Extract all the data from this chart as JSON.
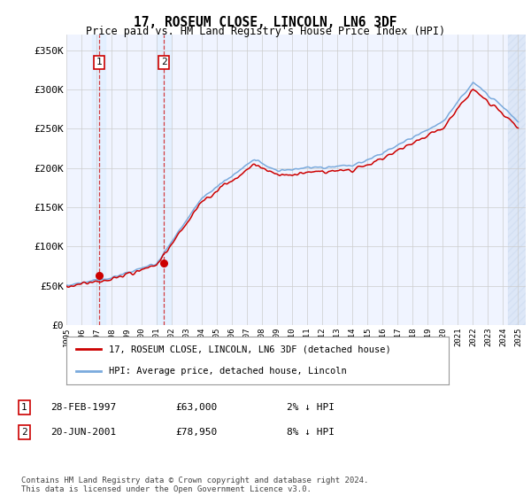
{
  "title": "17, ROSEUM CLOSE, LINCOLN, LN6 3DF",
  "subtitle": "Price paid vs. HM Land Registry's House Price Index (HPI)",
  "ylabel_ticks": [
    "£0",
    "£50K",
    "£100K",
    "£150K",
    "£200K",
    "£250K",
    "£300K",
    "£350K"
  ],
  "ytick_values": [
    0,
    50000,
    100000,
    150000,
    200000,
    250000,
    300000,
    350000
  ],
  "ylim": [
    0,
    370000
  ],
  "xlim_start": 1995.0,
  "xlim_end": 2025.5,
  "sale1_date": 1997.16,
  "sale1_price": 63000,
  "sale1_label": "1",
  "sale1_date_str": "28-FEB-1997",
  "sale1_price_str": "£63,000",
  "sale1_hpi_str": "2% ↓ HPI",
  "sale2_date": 2001.47,
  "sale2_price": 78950,
  "sale2_label": "2",
  "sale2_date_str": "20-JUN-2001",
  "sale2_price_str": "£78,950",
  "sale2_hpi_str": "8% ↓ HPI",
  "hpi_line_color": "#7aaadd",
  "price_line_color": "#cc0000",
  "sale_marker_color": "#cc0000",
  "shade_color": "#ddeeff",
  "grid_color": "#cccccc",
  "legend_label1": "17, ROSEUM CLOSE, LINCOLN, LN6 3DF (detached house)",
  "legend_label2": "HPI: Average price, detached house, Lincoln",
  "footnote": "Contains HM Land Registry data © Crown copyright and database right 2024.\nThis data is licensed under the Open Government Licence v3.0.",
  "bg_color": "#f0f4ff"
}
